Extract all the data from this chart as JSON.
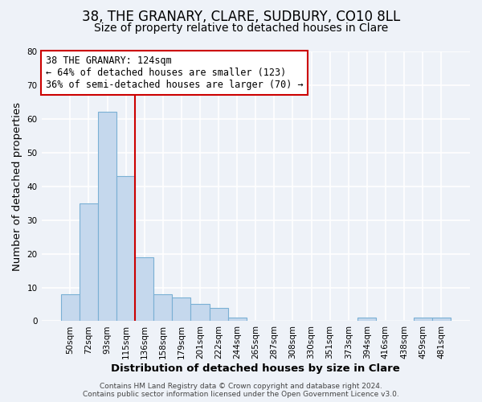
{
  "title": "38, THE GRANARY, CLARE, SUDBURY, CO10 8LL",
  "subtitle": "Size of property relative to detached houses in Clare",
  "xlabel": "Distribution of detached houses by size in Clare",
  "ylabel": "Number of detached properties",
  "categories": [
    "50sqm",
    "72sqm",
    "93sqm",
    "115sqm",
    "136sqm",
    "158sqm",
    "179sqm",
    "201sqm",
    "222sqm",
    "244sqm",
    "265sqm",
    "287sqm",
    "308sqm",
    "330sqm",
    "351sqm",
    "373sqm",
    "394sqm",
    "416sqm",
    "438sqm",
    "459sqm",
    "481sqm"
  ],
  "values": [
    8,
    35,
    62,
    43,
    19,
    8,
    7,
    5,
    4,
    1,
    0,
    0,
    0,
    0,
    0,
    0,
    1,
    0,
    0,
    1,
    1
  ],
  "bar_color": "#c5d8ed",
  "bar_edge_color": "#7ab0d4",
  "property_line_x": 3.5,
  "property_line_color": "#cc0000",
  "annotation_line1": "38 THE GRANARY: 124sqm",
  "annotation_line2": "← 64% of detached houses are smaller (123)",
  "annotation_line3": "36% of semi-detached houses are larger (70) →",
  "annotation_box_color": "#ffffff",
  "annotation_box_edge_color": "#cc0000",
  "ylim": [
    0,
    80
  ],
  "yticks": [
    0,
    10,
    20,
    30,
    40,
    50,
    60,
    70,
    80
  ],
  "footer": "Contains HM Land Registry data © Crown copyright and database right 2024.\nContains public sector information licensed under the Open Government Licence v3.0.",
  "background_color": "#eef2f8",
  "plot_background_color": "#eef2f8",
  "grid_color": "#ffffff",
  "title_fontsize": 12,
  "subtitle_fontsize": 10,
  "axis_label_fontsize": 9.5,
  "tick_fontsize": 7.5,
  "annotation_fontsize": 8.5,
  "footer_fontsize": 6.5
}
